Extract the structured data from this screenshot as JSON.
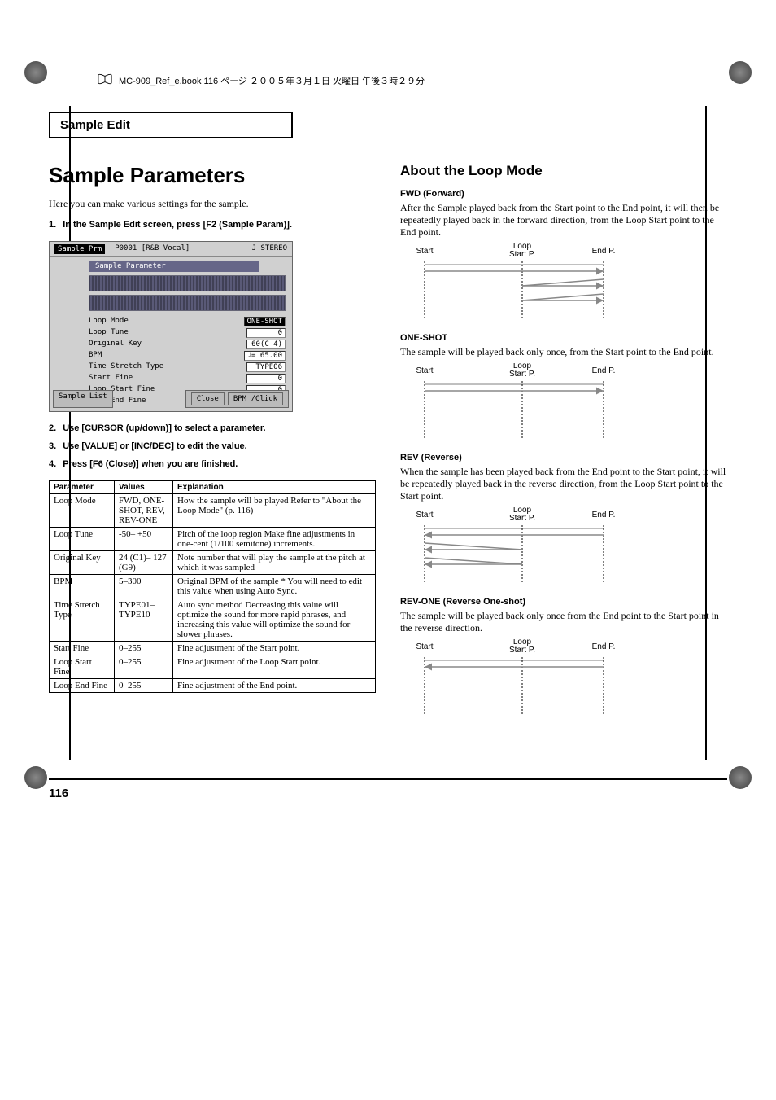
{
  "header": {
    "book_ref": "MC-909_Ref_e.book 116 ページ ２００５年３月１日 火曜日 午後３時２９分"
  },
  "section_header": "Sample Edit",
  "left": {
    "title": "Sample Parameters",
    "intro": "Here you can make various settings for the sample.",
    "steps": [
      {
        "num": "1.",
        "text": "In the Sample Edit screen, press [F2 (Sample Param)]."
      },
      {
        "num": "2.",
        "text": "Use [CURSOR (up/down)] to select a parameter."
      },
      {
        "num": "3.",
        "text": "Use [VALUE] or [INC/DEC] to edit the value."
      },
      {
        "num": "4.",
        "text": "Press [F6 (Close)] when you are finished."
      }
    ],
    "screenshot": {
      "title_left": "Sample Prm",
      "title_mid": "P0001 [R&B Vocal]",
      "title_right": "J STEREO",
      "panel_title": "Sample Parameter",
      "params": [
        {
          "k": "Loop Mode",
          "v": "ONE-SHOT",
          "inv": true
        },
        {
          "k": "Loop Tune",
          "v": "0"
        },
        {
          "k": "Original Key",
          "v": "60(C 4)"
        },
        {
          "k": "BPM",
          "v": "♩= 65.00"
        },
        {
          "k": "Time Stretch Type",
          "v": "TYPE06"
        },
        {
          "k": "Start Fine",
          "v": "0"
        },
        {
          "k": "Loop Start Fine",
          "v": "0"
        },
        {
          "k": "Loop End Fine",
          "v": "0"
        }
      ],
      "btn_left": "Sample List",
      "btn_close": "Close",
      "btn_bpm": "BPM /Click"
    },
    "table": {
      "headers": [
        "Parameter",
        "Values",
        "Explanation"
      ],
      "rows": [
        {
          "p": "Loop Mode",
          "v": "FWD, ONE-SHOT, REV, REV-ONE",
          "e": "How the sample will be played Refer to \"About the Loop Mode\" (p. 116)"
        },
        {
          "p": "Loop Tune",
          "v": "-50– +50",
          "e": "Pitch of the loop region Make fine adjustments in one-cent (1/100 semitone) increments."
        },
        {
          "p": "Original Key",
          "v": "24 (C1)– 127 (G9)",
          "e": "Note number that will play the sample at the pitch at which it was sampled"
        },
        {
          "p": "BPM",
          "v": "5–300",
          "e": "Original BPM of the sample * You will need to edit this value when using Auto Sync."
        },
        {
          "p": "Time Stretch Type",
          "v": "TYPE01– TYPE10",
          "e": "Auto sync method Decreasing this value will optimize the sound for more rapid phrases, and increasing this value will optimize the sound for slower phrases."
        },
        {
          "p": "Start Fine",
          "v": "0–255",
          "e": "Fine adjustment of the Start point."
        },
        {
          "p": "Loop Start Fine",
          "v": "0–255",
          "e": "Fine adjustment of the Loop Start point."
        },
        {
          "p": "Loop End Fine",
          "v": "0–255",
          "e": "Fine adjustment of the End point."
        }
      ]
    }
  },
  "right": {
    "title": "About the Loop Mode",
    "labels": {
      "start": "Start",
      "loop_start": "Loop Start P.",
      "end": "End P."
    },
    "modes": [
      {
        "title": "FWD (Forward)",
        "desc": "After the Sample played back from the Start point to the End point, it will then be repeatedly played back in the forward direction, from the Loop Start point to the End point.",
        "type": "fwd"
      },
      {
        "title": "ONE-SHOT",
        "desc": "The sample will be played back only once, from the Start point to the End point.",
        "type": "one"
      },
      {
        "title": "REV (Reverse)",
        "desc": "When the sample has been played back from the End point to the Start point, it will be repeatedly played back in the reverse direction, from the Loop Start point to the Start point.",
        "type": "rev"
      },
      {
        "title": "REV-ONE (Reverse One-shot)",
        "desc": "The sample will be played back only once from the End point to the Start point in the reverse direction.",
        "type": "revone"
      }
    ]
  },
  "page_number": "116",
  "colors": {
    "text": "#000000",
    "screenshot_bg": "#d0d0d0",
    "screenshot_inv": "#000000",
    "arrow": "#888888"
  }
}
